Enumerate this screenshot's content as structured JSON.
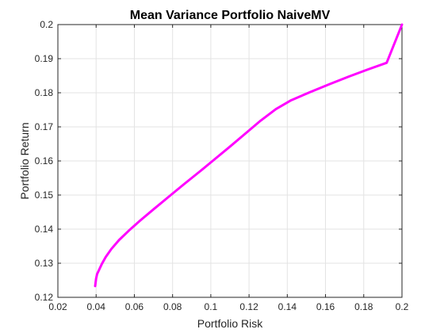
{
  "chart_data": {
    "type": "line",
    "title": "Mean Variance Portfolio NaiveMV",
    "xlabel": "Portfolio Risk",
    "ylabel": "Portfolio Return",
    "xlim": [
      0.02,
      0.2
    ],
    "ylim": [
      0.12,
      0.2
    ],
    "xticks": [
      0.02,
      0.04,
      0.06,
      0.08,
      0.1,
      0.12,
      0.14,
      0.16,
      0.18,
      0.2
    ],
    "xtick_labels": [
      "0.02",
      "0.04",
      "0.06",
      "0.08",
      "0.1",
      "0.12",
      "0.14",
      "0.16",
      "0.18",
      "0.2"
    ],
    "yticks": [
      0.12,
      0.13,
      0.14,
      0.15,
      0.16,
      0.17,
      0.18,
      0.19,
      0.2
    ],
    "ytick_labels": [
      "0.12",
      "0.13",
      "0.14",
      "0.15",
      "0.16",
      "0.17",
      "0.18",
      "0.19",
      "0.2"
    ],
    "grid": true,
    "series": [
      {
        "color": "#ff00ff",
        "x": [
          0.0395,
          0.04,
          0.0405,
          0.0415,
          0.043,
          0.045,
          0.048,
          0.052,
          0.057,
          0.063,
          0.07,
          0.078,
          0.086,
          0.094,
          0.102,
          0.11,
          0.118,
          0.126,
          0.134,
          0.142,
          0.152,
          0.162,
          0.172,
          0.182,
          0.192,
          0.2
        ],
        "y": [
          0.1233,
          0.1255,
          0.1268,
          0.128,
          0.1298,
          0.1318,
          0.1342,
          0.1368,
          0.1395,
          0.1425,
          0.1458,
          0.1495,
          0.1532,
          0.1568,
          0.1605,
          0.1642,
          0.168,
          0.1718,
          0.1752,
          0.1778,
          0.1802,
          0.1825,
          0.1847,
          0.1868,
          0.1888,
          0.2
        ]
      }
    ]
  },
  "colors": {
    "axis": "#262626",
    "grid": "#e3e3e3",
    "line": "#ff00ff"
  }
}
